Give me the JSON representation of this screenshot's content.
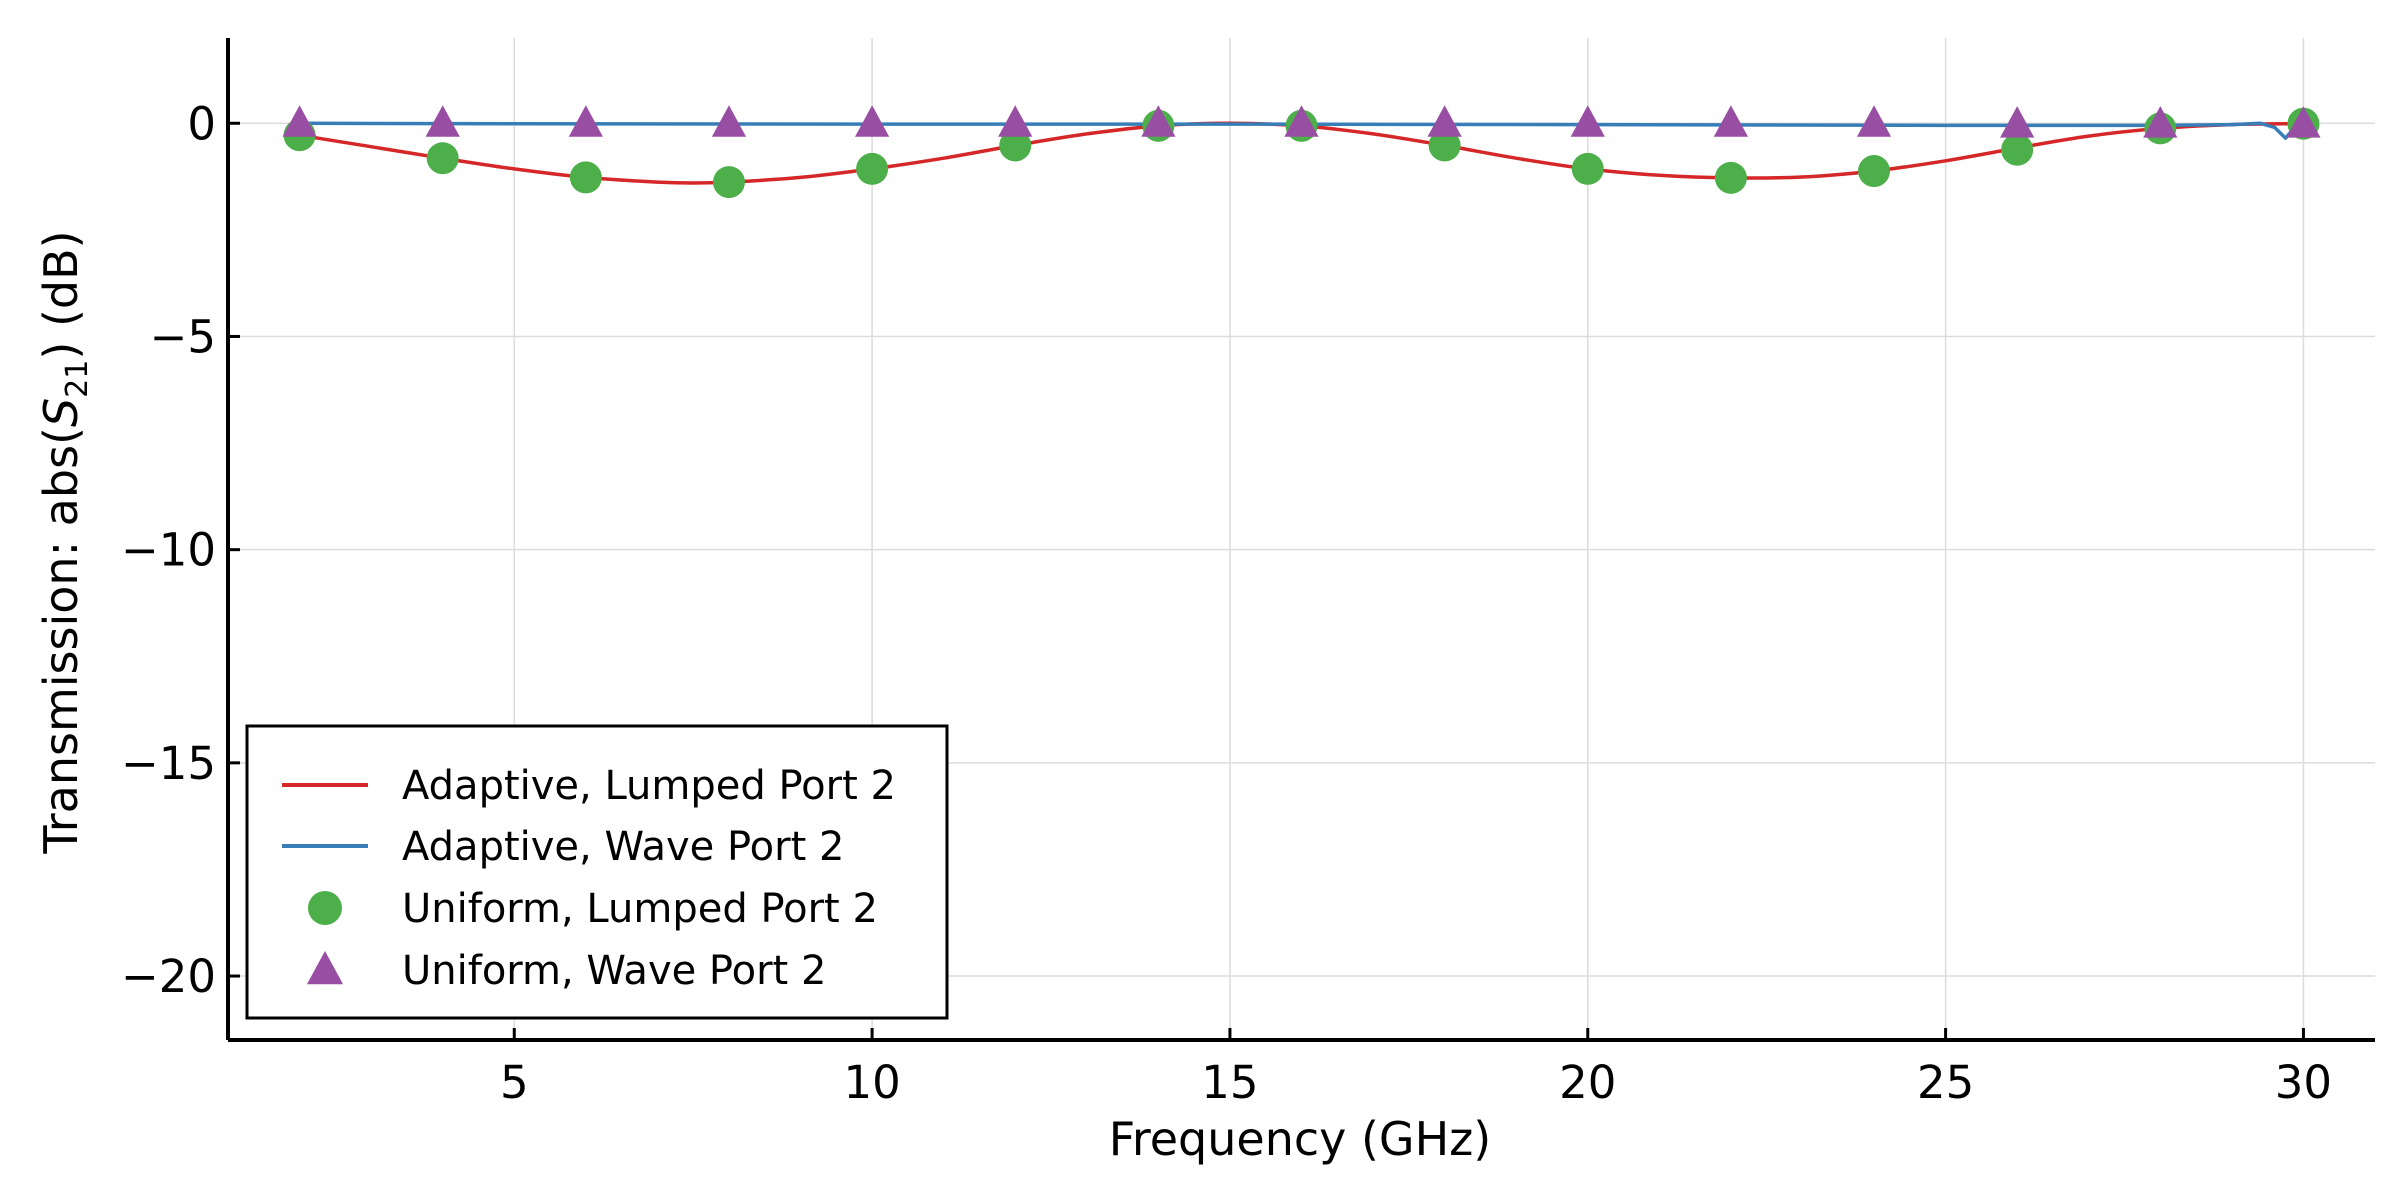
{
  "chart_data": {
    "type": "line",
    "xlabel": "Frequency  (GHz)",
    "ylabel": {
      "prefix": "Transmission: abs(",
      "symbol": "S",
      "subscript": "21",
      "suffix": ")  (dB)"
    },
    "xlim": [
      1,
      31
    ],
    "ylim": [
      -21.5,
      2
    ],
    "xticks": [
      5,
      10,
      15,
      20,
      25,
      30
    ],
    "yticks": [
      0,
      -5,
      -10,
      -15,
      -20
    ],
    "ytick_labels": [
      "0",
      "−5",
      "−10",
      "−15",
      "−20"
    ],
    "grid": true,
    "legend_position": "lower-left",
    "series": [
      {
        "name": "Adaptive, Lumped Port 2",
        "style": "line",
        "color": "#d62728",
        "x": [
          2,
          3,
          4,
          5,
          6,
          7,
          7.5,
          8,
          9,
          10,
          11,
          12,
          13,
          14,
          15,
          16,
          17,
          18,
          19,
          20,
          21,
          22,
          23,
          24,
          25,
          26,
          27,
          28,
          29,
          30
        ],
        "y": [
          -0.28,
          -0.55,
          -0.82,
          -1.07,
          -1.27,
          -1.38,
          -1.4,
          -1.38,
          -1.27,
          -1.07,
          -0.82,
          -0.52,
          -0.25,
          -0.06,
          0,
          -0.06,
          -0.25,
          -0.52,
          -0.82,
          -1.07,
          -1.22,
          -1.28,
          -1.26,
          -1.12,
          -0.88,
          -0.58,
          -0.3,
          -0.12,
          -0.03,
          -0.01
        ]
      },
      {
        "name": "Adaptive, Wave Port 2",
        "style": "line",
        "color": "#377eb8",
        "x": [
          2,
          5,
          10,
          15,
          20,
          25,
          28,
          29,
          29.4,
          29.6,
          29.75,
          29.9,
          30
        ],
        "y": [
          0,
          -0.01,
          -0.02,
          -0.02,
          -0.03,
          -0.05,
          -0.05,
          -0.03,
          0,
          -0.1,
          -0.35,
          -0.05,
          -0.02
        ]
      },
      {
        "name": "Uniform, Lumped Port 2",
        "style": "marker-circle",
        "color": "#4daf4a",
        "x": [
          2,
          4,
          6,
          8,
          10,
          12,
          14,
          16,
          18,
          20,
          22,
          24,
          26,
          28,
          30
        ],
        "y": [
          -0.28,
          -0.82,
          -1.27,
          -1.38,
          -1.07,
          -0.52,
          -0.06,
          -0.06,
          -0.52,
          -1.07,
          -1.28,
          -1.12,
          -0.62,
          -0.12,
          -0.01
        ]
      },
      {
        "name": "Uniform, Wave Port 2",
        "style": "marker-triangle",
        "color": "#984ea3",
        "x": [
          2,
          4,
          6,
          8,
          10,
          12,
          14,
          16,
          18,
          20,
          22,
          24,
          26,
          28,
          30
        ],
        "y": [
          0,
          0,
          0,
          0,
          0,
          0,
          0,
          0,
          0,
          0,
          0,
          0,
          -0.02,
          -0.02,
          -0.02
        ]
      }
    ]
  }
}
